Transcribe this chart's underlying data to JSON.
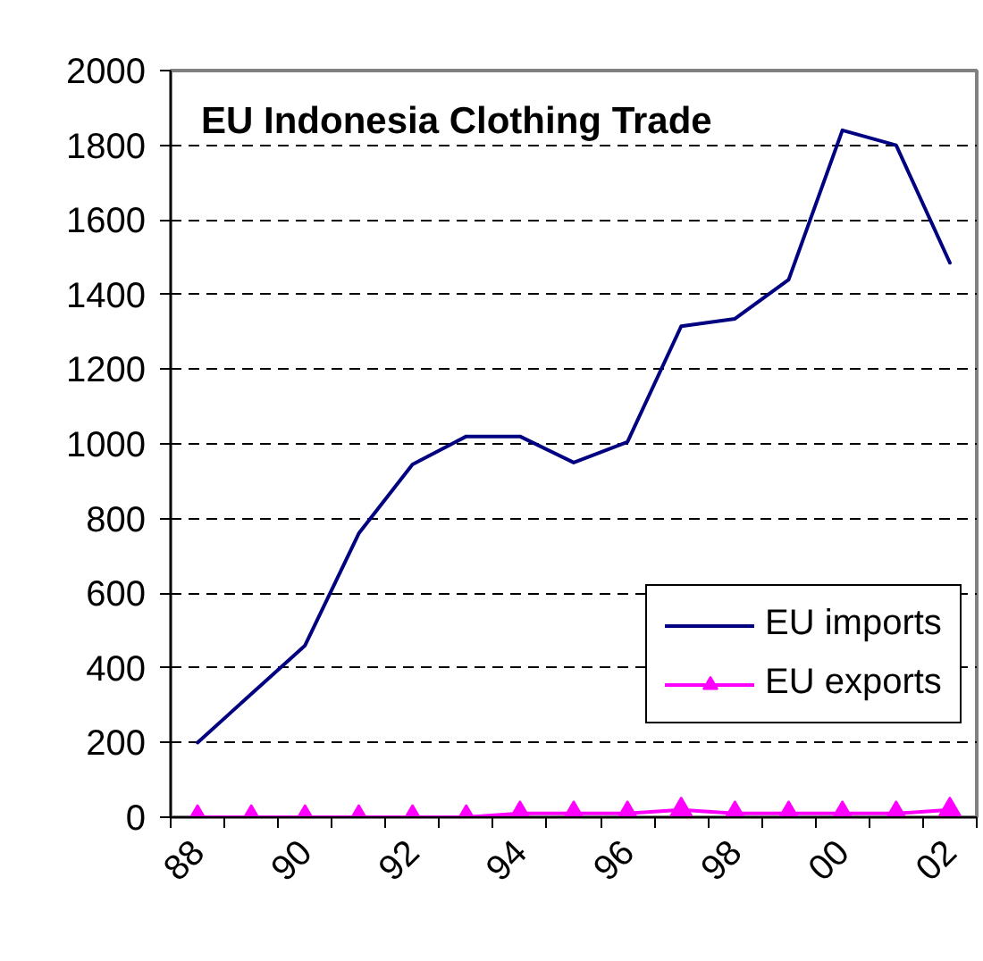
{
  "chart_data": {
    "type": "line",
    "title": "EU Indonesia Clothing Trade",
    "categories": [
      "88",
      null,
      "90",
      null,
      "92",
      null,
      "94",
      null,
      "96",
      null,
      "98",
      null,
      "00",
      null,
      "02"
    ],
    "series": [
      {
        "name": "EU imports",
        "color": "#000080",
        "marker": "none",
        "values": [
          200,
          330,
          460,
          760,
          945,
          1020,
          1020,
          950,
          1005,
          1315,
          1335,
          1440,
          1840,
          1800,
          1485
        ]
      },
      {
        "name": "EU exports",
        "color": "#ff00ff",
        "marker": "triangle",
        "values": [
          0,
          0,
          0,
          0,
          0,
          0,
          10,
          10,
          10,
          20,
          10,
          10,
          10,
          10,
          20
        ]
      }
    ],
    "ylim": [
      0,
      2000
    ],
    "yticks": [
      0,
      200,
      400,
      600,
      800,
      1000,
      1200,
      1400,
      1600,
      1800,
      2000
    ],
    "grid": "y",
    "legend": "bottom right",
    "line_style": "solid"
  }
}
